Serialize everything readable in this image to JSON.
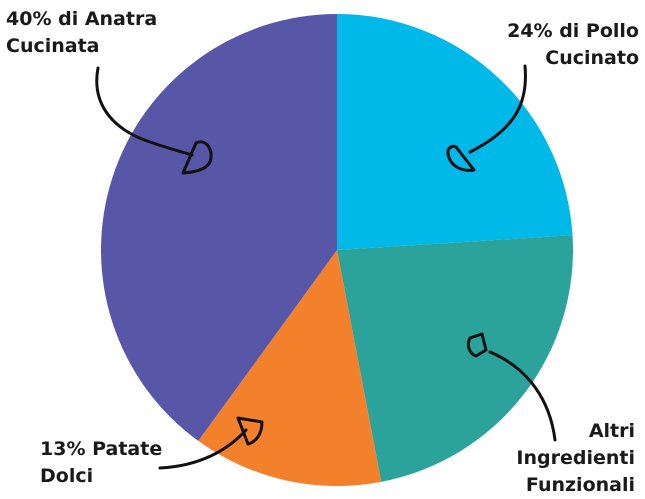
{
  "chart_data": {
    "type": "pie",
    "slices": [
      {
        "label_lines": [
          "24% di Pollo",
          "Cucinato"
        ],
        "value": 24,
        "color": "#00b9e8"
      },
      {
        "label_lines": [
          "Altri",
          "Ingredienti",
          "Funzionali"
        ],
        "value": 23,
        "color": "#2ba39b"
      },
      {
        "label_lines": [
          "13% Patate",
          "Dolci"
        ],
        "value": 13,
        "color": "#f3812c"
      },
      {
        "label_lines": [
          "40% di Anatra",
          "Cucinata"
        ],
        "value": 40,
        "color": "#5856a6"
      }
    ],
    "start_angle_deg": 0,
    "direction": "clockwise",
    "legend": "none",
    "callout_style": "hand-drawn arrows"
  }
}
